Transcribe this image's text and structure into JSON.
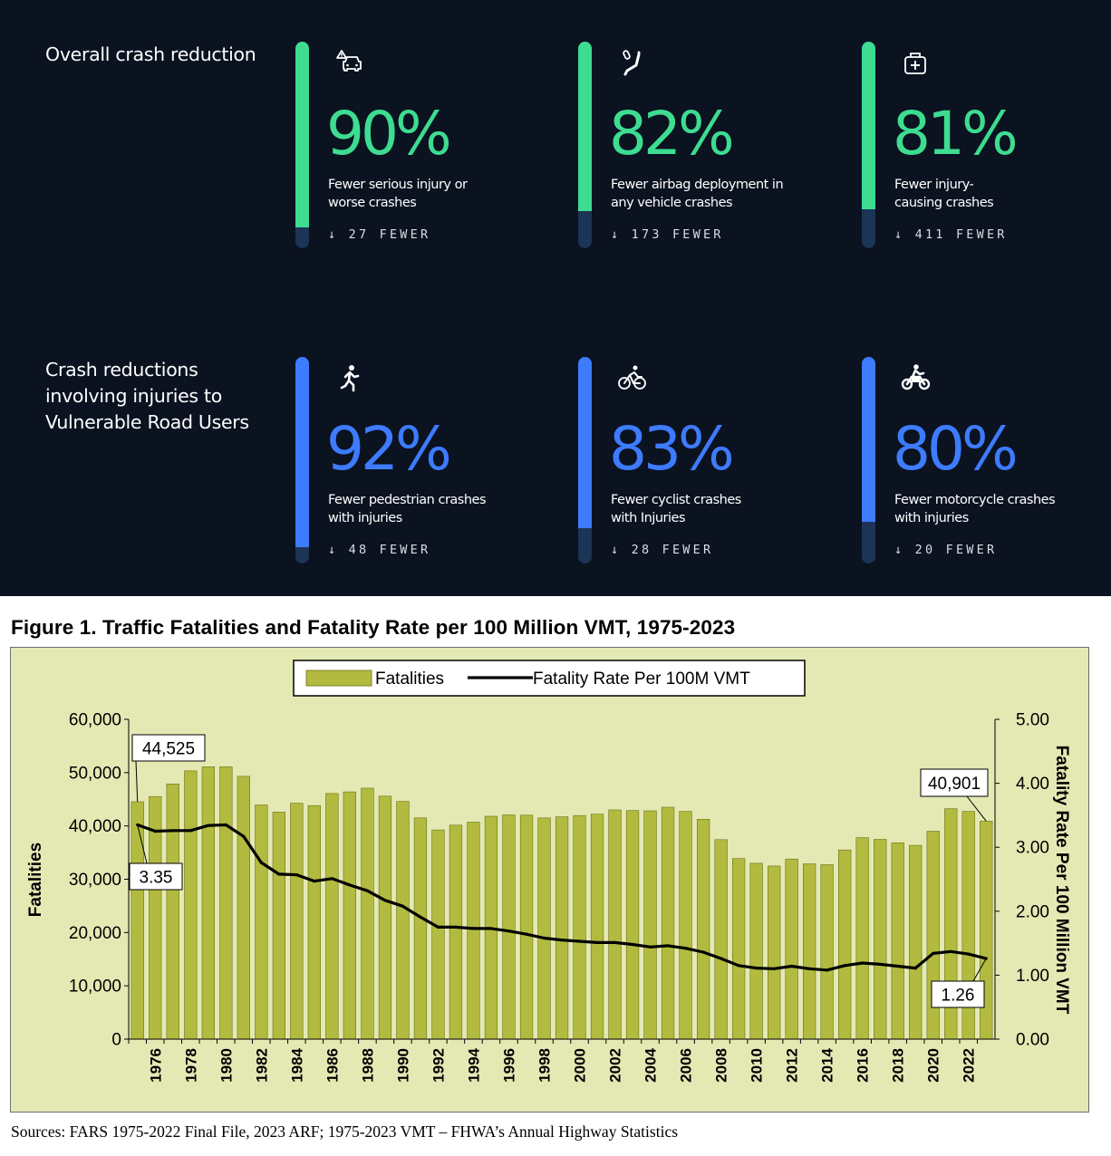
{
  "panel": {
    "sections": [
      {
        "title": "Overall crash reduction"
      },
      {
        "title": "Crash reductions involving injuries to Vulnerable Road Users"
      }
    ],
    "stats": [
      {
        "icon": "car-warning-icon",
        "percent": "90%",
        "desc_line1": "Fewer serious injury or",
        "desc_line2": "worse crashes",
        "fewer": "↓ 27 FEWER",
        "value": 0.9,
        "color": "#3ddc91",
        "track": "#1c3455"
      },
      {
        "icon": "airbag-seat-icon",
        "percent": "82%",
        "desc_line1": "Fewer airbag deployment in",
        "desc_line2": "any vehicle crashes",
        "fewer": "↓ 173 FEWER",
        "value": 0.82,
        "color": "#3ddc91",
        "track": "#1c3455"
      },
      {
        "icon": "medical-bag-icon",
        "percent": "81%",
        "desc_line1": "Fewer injury-",
        "desc_line2": "causing crashes",
        "fewer": "↓ 411 FEWER",
        "value": 0.81,
        "color": "#3ddc91",
        "track": "#1c3455"
      },
      {
        "icon": "pedestrian-icon",
        "percent": "92%",
        "desc_line1": "Fewer pedestrian crashes",
        "desc_line2": "with injuries",
        "fewer": "↓ 48 FEWER",
        "value": 0.92,
        "color": "#3d7bff",
        "track": "#1c3455"
      },
      {
        "icon": "cyclist-icon",
        "percent": "83%",
        "desc_line1": "Fewer cyclist crashes",
        "desc_line2": "with Injuries",
        "fewer": "↓ 28 FEWER",
        "value": 0.83,
        "color": "#3d7bff",
        "track": "#1c3455"
      },
      {
        "icon": "motorcycle-icon",
        "percent": "80%",
        "desc_line1": "Fewer motorcycle crashes",
        "desc_line2": "with injuries",
        "fewer": "↓ 20 FEWER",
        "value": 0.8,
        "color": "#3d7bff",
        "track": "#1c3455"
      }
    ]
  },
  "figure": {
    "title": "Figure 1. Traffic Fatalities and Fatality Rate per 100 Million VMT, 1975-2023",
    "sources": "Sources: FARS 1975-2022 Final File, 2023 ARF; 1975-2023 VMT – FHWA’s Annual Highway Statistics"
  },
  "chart_data": {
    "type": "bar",
    "title": "Figure 1. Traffic Fatalities and Fatality Rate per 100 Million VMT, 1975-2023",
    "ylabel": "Fatalities",
    "y2label": "Fatality Rate Per 100 Million VMT",
    "ylim": [
      0,
      60000
    ],
    "y2lim": [
      0,
      5
    ],
    "legend_position": "top-center",
    "colors": {
      "bar": "#b2bb3f",
      "line": "#000000",
      "background": "#e4e9b4"
    },
    "y_ticks": [
      "0",
      "10,000",
      "20,000",
      "30,000",
      "40,000",
      "50,000",
      "60,000"
    ],
    "y2_ticks": [
      "0.00",
      "1.00",
      "2.00",
      "3.00",
      "4.00",
      "5.00"
    ],
    "x": [
      1975,
      1976,
      1977,
      1978,
      1979,
      1980,
      1981,
      1982,
      1983,
      1984,
      1985,
      1986,
      1987,
      1988,
      1989,
      1990,
      1991,
      1992,
      1993,
      1994,
      1995,
      1996,
      1997,
      1998,
      1999,
      2000,
      2001,
      2002,
      2003,
      2004,
      2005,
      2006,
      2007,
      2008,
      2009,
      2010,
      2011,
      2012,
      2013,
      2014,
      2015,
      2016,
      2017,
      2018,
      2019,
      2020,
      2021,
      2022,
      2023
    ],
    "x_tick_labels": [
      "1976",
      "1978",
      "1980",
      "1982",
      "1984",
      "1986",
      "1988",
      "1990",
      "1992",
      "1994",
      "1996",
      "1998",
      "2000",
      "2002",
      "2004",
      "2006",
      "2008",
      "2010",
      "2012",
      "2014",
      "2016",
      "2018",
      "2020",
      "2022"
    ],
    "series": [
      {
        "name": "Fatalities",
        "kind": "bar",
        "values": [
          44525,
          45523,
          47878,
          50331,
          51093,
          51091,
          49301,
          43945,
          42589,
          44257,
          43825,
          46087,
          46390,
          47087,
          45582,
          44599,
          41508,
          39250,
          40150,
          40716,
          41817,
          42065,
          42013,
          41501,
          41717,
          41945,
          42196,
          43005,
          42884,
          42836,
          43510,
          42708,
          41259,
          37423,
          33883,
          32999,
          32479,
          33782,
          32893,
          32744,
          35484,
          37806,
          37473,
          36835,
          36355,
          39007,
          43230,
          42721,
          40901
        ]
      },
      {
        "name": "Fatality Rate Per 100M VMT",
        "kind": "line",
        "values": [
          3.35,
          3.25,
          3.26,
          3.26,
          3.34,
          3.35,
          3.17,
          2.76,
          2.58,
          2.57,
          2.47,
          2.51,
          2.41,
          2.32,
          2.17,
          2.08,
          1.91,
          1.75,
          1.75,
          1.73,
          1.73,
          1.69,
          1.64,
          1.58,
          1.55,
          1.53,
          1.51,
          1.51,
          1.48,
          1.44,
          1.46,
          1.42,
          1.36,
          1.26,
          1.15,
          1.11,
          1.1,
          1.14,
          1.1,
          1.08,
          1.15,
          1.19,
          1.17,
          1.14,
          1.11,
          1.34,
          1.37,
          1.33,
          1.26
        ]
      }
    ],
    "annotations": [
      {
        "text": "44,525",
        "target": "Fatalities 1975"
      },
      {
        "text": "3.35",
        "target": "Rate 1975"
      },
      {
        "text": "40,901",
        "target": "Fatalities 2023"
      },
      {
        "text": "1.26",
        "target": "Rate 2023"
      }
    ]
  }
}
